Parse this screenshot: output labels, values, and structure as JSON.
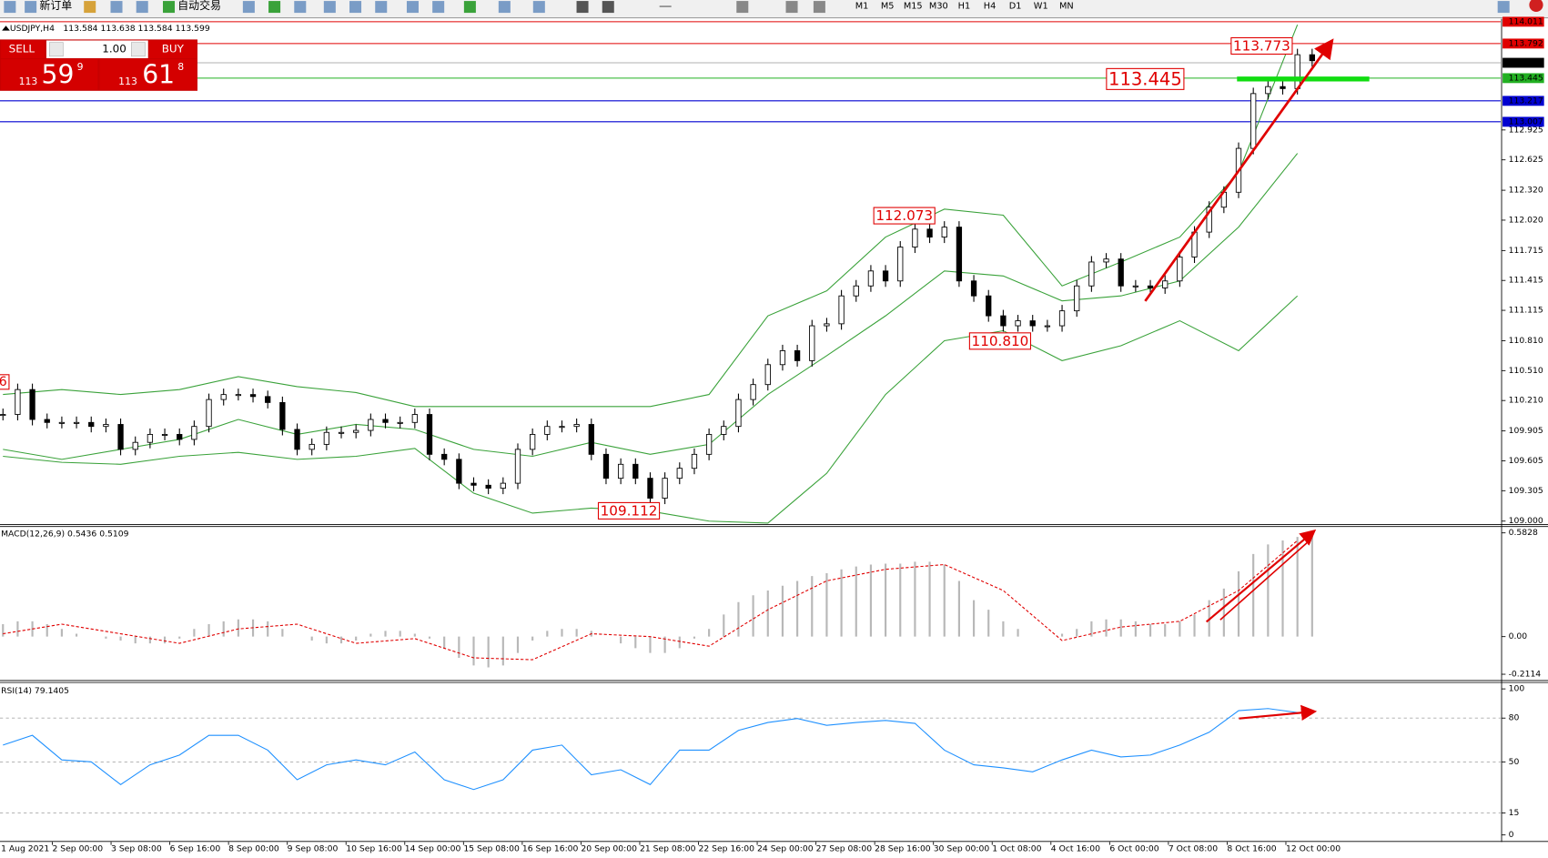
{
  "toolbar": {
    "buttons": [
      "新订单",
      "自动交易"
    ],
    "timeframes": [
      "M1",
      "M5",
      "M15",
      "M30",
      "H1",
      "H4",
      "D1",
      "W1",
      "MN"
    ]
  },
  "order_panel": {
    "sell": "SELL",
    "buy": "BUY",
    "lot": "1.00",
    "sell_price": {
      "big_figure": "113",
      "pips": "59",
      "fraction": "9"
    },
    "buy_price": {
      "big_figure": "113",
      "pips": "61",
      "fraction": "8"
    }
  },
  "time_axis": [
    "1 Aug 2021",
    "2 Sep 00:00",
    "3 Sep 08:00",
    "6 Sep 16:00",
    "8 Sep 00:00",
    "9 Sep 08:00",
    "10 Sep 16:00",
    "14 Sep 00:00",
    "15 Sep 08:00",
    "16 Sep 16:00",
    "20 Sep 00:00",
    "21 Sep 08:00",
    "22 Sep 16:00",
    "24 Sep 00:00",
    "27 Sep 08:00",
    "28 Sep 16:00",
    "30 Sep 00:00",
    "1 Oct 08:00",
    "4 Oct 16:00",
    "6 Oct 00:00",
    "7 Oct 08:00",
    "8 Oct 16:00",
    "12 Oct 00:00"
  ],
  "chart_data": [
    {
      "type": "candlestick",
      "title": "USDJPY,H4",
      "subtitle": "113.584 113.638 113.584 113.599",
      "values": [
        110.07,
        110.32,
        110.02,
        109.99,
        109.99,
        109.99,
        109.95,
        109.97,
        109.72,
        109.79,
        109.87,
        109.87,
        109.82,
        109.95,
        110.22,
        110.27,
        110.27,
        110.25,
        110.19,
        109.92,
        109.72,
        109.77,
        109.89,
        109.89,
        109.91,
        110.02,
        109.99,
        109.99,
        110.07,
        109.67,
        109.62,
        109.38,
        109.36,
        109.33,
        109.38,
        109.72,
        109.87,
        109.95,
        109.95,
        109.97,
        109.67,
        109.43,
        109.57,
        109.43,
        109.23,
        109.43,
        109.53,
        109.67,
        109.87,
        109.95,
        110.22,
        110.37,
        110.57,
        110.71,
        110.61,
        110.96,
        110.98,
        111.26,
        111.36,
        111.51,
        111.41,
        111.75,
        111.93,
        111.85,
        111.95,
        111.41,
        111.26,
        111.06,
        110.96,
        111.01,
        110.96,
        110.96,
        111.11,
        111.36,
        111.6,
        111.63,
        111.36,
        111.36,
        111.34,
        111.41,
        111.65,
        111.9,
        112.15,
        112.3,
        112.74,
        113.29,
        113.36,
        113.34,
        113.68,
        113.62
      ],
      "up_color": "#ffffff",
      "down_color": "#000000",
      "bands": {
        "upper": [
          110.27,
          110.32,
          110.27,
          110.32,
          110.45,
          110.35,
          110.29,
          110.15,
          110.15,
          110.15,
          110.15,
          110.15,
          110.27,
          111.06,
          111.31,
          111.85,
          112.13,
          112.07,
          111.36,
          111.6,
          111.85,
          112.5,
          113.98
        ],
        "middle": [
          109.72,
          109.62,
          109.72,
          109.82,
          110.02,
          109.87,
          109.97,
          109.92,
          109.72,
          109.65,
          109.79,
          109.67,
          109.77,
          110.27,
          110.66,
          111.06,
          111.51,
          111.46,
          111.21,
          111.26,
          111.41,
          111.95,
          112.69
        ],
        "lower": [
          109.65,
          109.59,
          109.57,
          109.65,
          109.69,
          109.62,
          109.65,
          109.73,
          109.28,
          109.08,
          109.13,
          109.1,
          109.0,
          108.98,
          109.48,
          110.27,
          110.81,
          110.91,
          110.61,
          110.76,
          111.01,
          110.71,
          111.26
        ]
      },
      "band_color": "#3aa23a",
      "ylim": [
        108.97,
        114.031
      ],
      "yticks": [
        112.925,
        112.625,
        {
          "value": 112.32,
          "label": "112.320"
        },
        {
          "value": 112.02,
          "label": "112.020"
        },
        111.715,
        111.415,
        111.115,
        {
          "value": 110.81,
          "label": "110.810"
        },
        {
          "value": 110.51,
          "label": "110.510"
        },
        {
          "value": 110.21,
          "label": "110.210"
        },
        109.905,
        109.605,
        109.305,
        {
          "value": 109,
          "label": "109.000"
        }
      ],
      "levels": [
        {
          "value": 114.011,
          "color": "#e00000"
        },
        {
          "value": 113.792,
          "color": "#e00000"
        },
        {
          "value": 113.599,
          "color": "#b0b0b0",
          "label_color": "#000000"
        },
        {
          "value": 113.445,
          "color": "#22b022"
        },
        {
          "value": 113.217,
          "color": "#0000d0"
        },
        {
          "value": 113.007,
          "color": "#0000d0"
        }
      ],
      "annotations": [
        "113.773",
        "113.445",
        "112.073",
        "110.810",
        "109.112",
        "6"
      ],
      "annotation_color": "#e00000"
    },
    {
      "type": "macd",
      "title": "MACD(12,26,9) 0.5436 0.5109",
      "values": [
        0.07,
        0.086,
        0.086,
        0.07,
        0.043,
        0.016,
        0,
        -0.011,
        -0.022,
        -0.038,
        -0.038,
        -0.038,
        -0.011,
        0.043,
        0.07,
        0.086,
        0.097,
        0.097,
        0.086,
        0.043,
        0,
        -0.022,
        -0.038,
        -0.038,
        -0.022,
        0.016,
        0.032,
        0.032,
        0.016,
        -0.011,
        -0.065,
        -0.119,
        -0.162,
        -0.173,
        -0.162,
        -0.092,
        -0.022,
        0.032,
        0.043,
        0.043,
        0.032,
        0,
        -0.038,
        -0.065,
        -0.092,
        -0.092,
        -0.065,
        -0.011,
        0.043,
        0.124,
        0.194,
        0.232,
        0.259,
        0.286,
        0.313,
        0.34,
        0.356,
        0.378,
        0.394,
        0.405,
        0.41,
        0.41,
        0.421,
        0.421,
        0.405,
        0.313,
        0.205,
        0.151,
        0.086,
        0.043,
        0,
        0,
        0.016,
        0.043,
        0.086,
        0.097,
        0.097,
        0.086,
        0.07,
        0.07,
        0.086,
        0.124,
        0.205,
        0.27,
        0.367,
        0.464,
        0.518,
        0.54,
        0.56,
        0.583
      ],
      "color": "#b8b8b8",
      "signal": [
        0.016,
        0.07,
        0.016,
        -0.038,
        0.043,
        0.07,
        -0.038,
        -0.011,
        -0.119,
        -0.13,
        0.016,
        0,
        -0.054,
        0.151,
        0.313,
        0.378,
        0.405,
        0.259,
        -0.022,
        0.054,
        0.086,
        0.259,
        0.54
      ],
      "signal_color": "#e00000",
      "ylim": [
        -0.244,
        0.621
      ],
      "yticks": [
        0.5828,
        {
          "value": 0,
          "label": "0.00"
        },
        -0.2114
      ]
    },
    {
      "type": "rsi",
      "title": "RSI(14) 79.1405",
      "values": [
        61.5,
        68.2,
        51.4,
        50,
        34.5,
        48,
        54.7,
        68.2,
        68.2,
        58.1,
        37.8,
        48,
        51.4,
        48,
        56.8,
        37.8,
        31.1,
        37.8,
        58.1,
        61.5,
        41.2,
        44.6,
        34.5,
        58.1,
        58.1,
        71.6,
        77,
        79.7,
        75,
        77,
        78.4,
        76.4,
        58.1,
        48,
        45.9,
        43.2,
        51.4,
        58.1,
        53.4,
        54.7,
        61.5,
        70.3,
        85.1,
        86.5,
        83.8
      ],
      "color": "#1e90ff",
      "ylim": [
        -4.1,
        104.7
      ],
      "yticks": [
        100,
        80,
        50,
        15,
        0
      ],
      "levels": [
        80,
        50,
        15
      ]
    }
  ]
}
